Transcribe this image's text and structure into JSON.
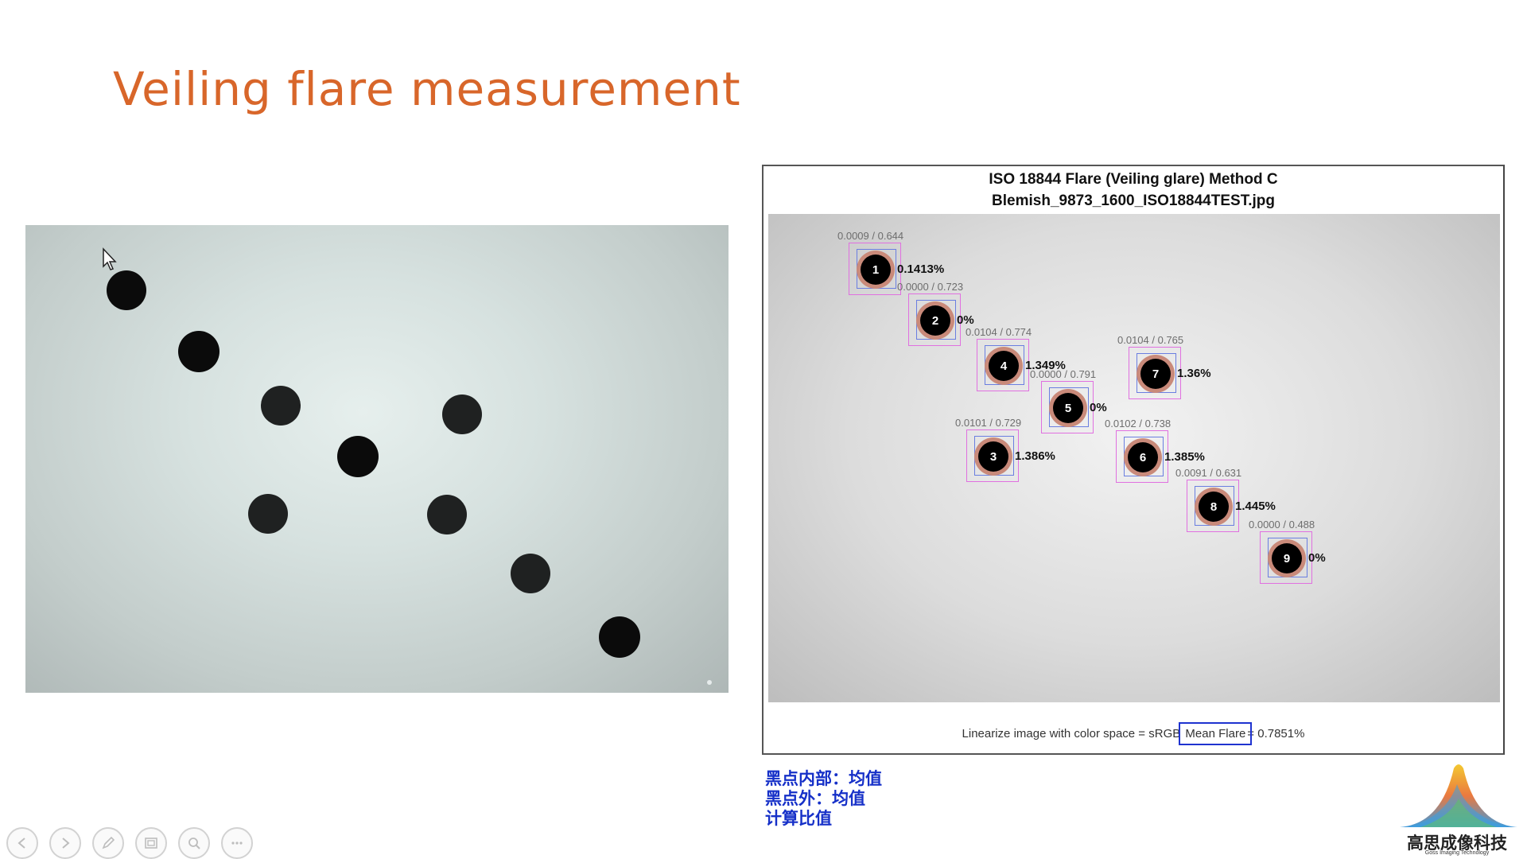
{
  "slide": {
    "title": "Veiling flare measurement"
  },
  "result": {
    "title_line1": "ISO 18844 Flare (Veiling glare) Method C",
    "title_line2": "Blemish_9873_1600_ISO18844TEST.jpg",
    "footer_prefix": "Linearize image with color space = sRGB",
    "footer_highlight": "Mean Flare",
    "footer_suffix": "= 0.7851%",
    "patches": [
      {
        "id": "1",
        "pair": "0.0009 / 0.644",
        "pct": "0.1413%"
      },
      {
        "id": "2",
        "pair": "0.0000 / 0.723",
        "pct": "0%"
      },
      {
        "id": "4",
        "pair": "0.0104 / 0.774",
        "pct": "1.349%"
      },
      {
        "id": "7",
        "pair": "0.0104 / 0.765",
        "pct": "1.36%"
      },
      {
        "id": "5",
        "pair": "0.0000 / 0.791",
        "pct": "0%"
      },
      {
        "id": "3",
        "pair": "0.0101 / 0.729",
        "pct": "1.386%"
      },
      {
        "id": "6",
        "pair": "0.0102 / 0.738",
        "pct": "1.385%"
      },
      {
        "id": "8",
        "pair": "0.0091 / 0.631",
        "pct": "1.445%"
      },
      {
        "id": "9",
        "pair": "0.0000 / 0.488",
        "pct": "0%"
      }
    ]
  },
  "notes": {
    "line1": "黑点内部：均值",
    "line2": "黑点外：均值",
    "line3": "计算比值"
  },
  "logo": {
    "name_cn": "高思成像科技",
    "name_en": "Goss Imaging Technology"
  },
  "toolbar": {
    "icons": [
      "prev-icon",
      "next-icon",
      "pen-icon",
      "slides-icon",
      "zoom-icon",
      "more-icon"
    ]
  },
  "colors": {
    "title": "#d8662a",
    "notes": "#1630c8",
    "highlight_box": "#1f33d0"
  }
}
